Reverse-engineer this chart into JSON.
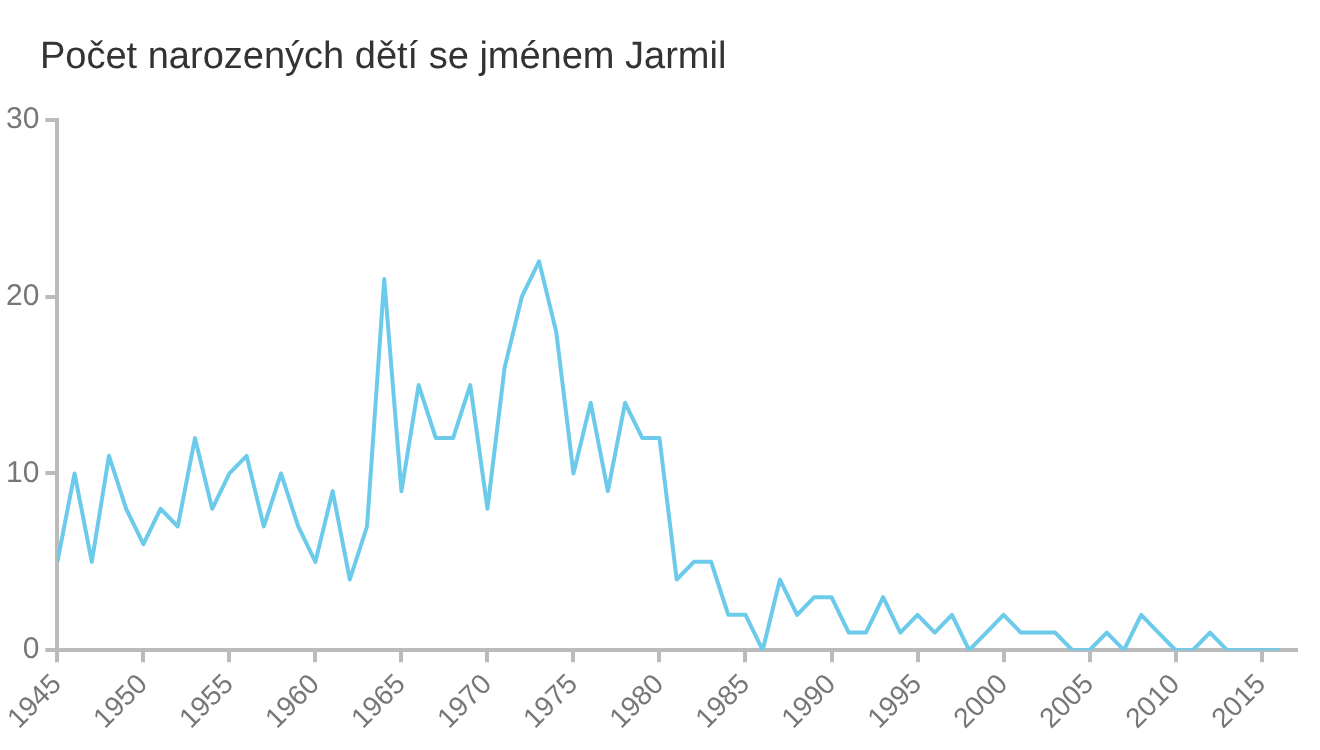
{
  "chart_data": {
    "type": "line",
    "title": "Počet narozených dětí se jménem Jarmil",
    "x": [
      1945,
      1946,
      1947,
      1948,
      1949,
      1950,
      1951,
      1952,
      1953,
      1954,
      1955,
      1956,
      1957,
      1958,
      1959,
      1960,
      1961,
      1962,
      1963,
      1964,
      1965,
      1966,
      1967,
      1968,
      1969,
      1970,
      1971,
      1972,
      1973,
      1974,
      1975,
      1976,
      1977,
      1978,
      1979,
      1980,
      1981,
      1982,
      1983,
      1984,
      1985,
      1986,
      1987,
      1988,
      1989,
      1990,
      1991,
      1992,
      1993,
      1994,
      1995,
      1996,
      1997,
      1998,
      1999,
      2000,
      2001,
      2002,
      2003,
      2004,
      2005,
      2006,
      2007,
      2008,
      2009,
      2010,
      2011,
      2012,
      2013,
      2014,
      2015,
      2016
    ],
    "series": [
      {
        "color": "#6ccbea",
        "values": [
          5,
          10,
          5,
          11,
          8,
          6,
          8,
          7,
          12,
          8,
          10,
          11,
          7,
          10,
          7,
          5,
          9,
          4,
          7,
          21,
          9,
          15,
          12,
          12,
          15,
          8,
          16,
          20,
          22,
          18,
          10,
          14,
          9,
          14,
          12,
          12,
          4,
          5,
          5,
          2,
          2,
          0,
          4,
          2,
          3,
          3,
          1,
          1,
          3,
          1,
          2,
          1,
          2,
          0,
          1,
          2,
          1,
          1,
          1,
          0,
          0,
          1,
          0,
          2,
          1,
          0,
          0,
          1,
          0,
          0,
          0,
          0
        ]
      }
    ],
    "xlim": [
      1945,
      2017
    ],
    "xticks": [
      1945,
      1950,
      1955,
      1960,
      1965,
      1970,
      1975,
      1980,
      1985,
      1990,
      1995,
      2000,
      2005,
      2010,
      2015
    ],
    "ylim": [
      0,
      30
    ],
    "yticks": [
      0,
      10,
      20,
      30
    ],
    "grid": false,
    "legend": false,
    "marker": "none",
    "line_style": "solid"
  }
}
